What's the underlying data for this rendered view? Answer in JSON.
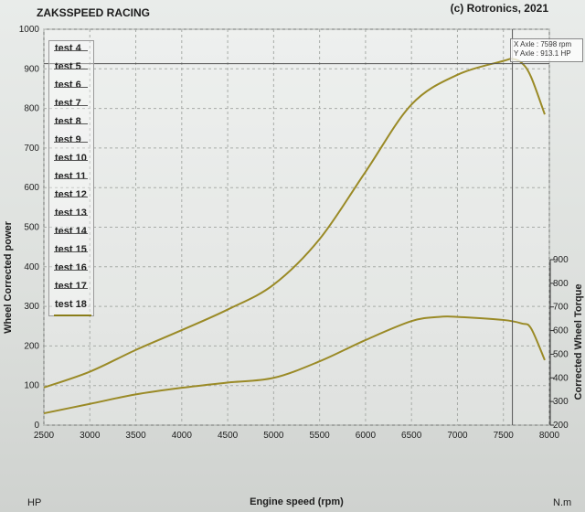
{
  "header": {
    "title": "ZAKSSPEED RACING",
    "copyright": "(c) Rotronics, 2021"
  },
  "legend": {
    "items": [
      "test 4",
      "test 5",
      "test 6",
      "test 7",
      "test 8",
      "test 9",
      "test 10",
      "test 11",
      "test 12",
      "test 13",
      "test 14",
      "test 15",
      "test 16",
      "test 17",
      "test 18"
    ],
    "active": "test 18"
  },
  "cursor": {
    "x_label": "X Axle : 7598 rpm",
    "y_label": "Y Axle : 913.1 HP",
    "x_value": 7598,
    "y_value": 913.1
  },
  "colors": {
    "curve": "#9a8a26",
    "grid": "#a8aca8",
    "cursor_line": "#555555"
  },
  "chart_data": {
    "type": "line",
    "xlabel": "Engine speed (rpm)",
    "ylabel_left": "Wheel Corrected power",
    "ylabel_right": "Corrected Wheel Torque",
    "x_unit": "rpm",
    "left_unit": "HP",
    "right_unit": "N.m",
    "xlim": [
      2500,
      8000
    ],
    "ylim_left": [
      0,
      1000
    ],
    "ylim_right": [
      200,
      900
    ],
    "x_ticks": [
      2500,
      3000,
      3500,
      4000,
      4500,
      5000,
      5500,
      6000,
      6500,
      7000,
      7500,
      8000
    ],
    "y_ticks_left": [
      0,
      100,
      200,
      300,
      400,
      500,
      600,
      700,
      800,
      900,
      1000
    ],
    "y_ticks_right": [
      200,
      300,
      400,
      500,
      600,
      700,
      800,
      900
    ],
    "grid": true,
    "legend_position": "top-left",
    "series": [
      {
        "name": "test 18",
        "axis": "left",
        "x": [
          2500,
          3000,
          3500,
          4000,
          4500,
          5000,
          5500,
          6000,
          6500,
          7000,
          7500,
          7600,
          7700,
          7800,
          7950
        ],
        "y": [
          95,
          135,
          190,
          240,
          292,
          355,
          470,
          640,
          810,
          885,
          920,
          925,
          915,
          880,
          785
        ]
      },
      {
        "name": "test 18",
        "axis": "right",
        "x": [
          2500,
          3000,
          3500,
          4000,
          4500,
          5000,
          5500,
          6000,
          6500,
          6800,
          7000,
          7500,
          7700,
          7800,
          7950
        ],
        "y": [
          250,
          290,
          330,
          358,
          380,
          400,
          470,
          560,
          640,
          658,
          658,
          645,
          630,
          610,
          475
        ]
      }
    ]
  }
}
